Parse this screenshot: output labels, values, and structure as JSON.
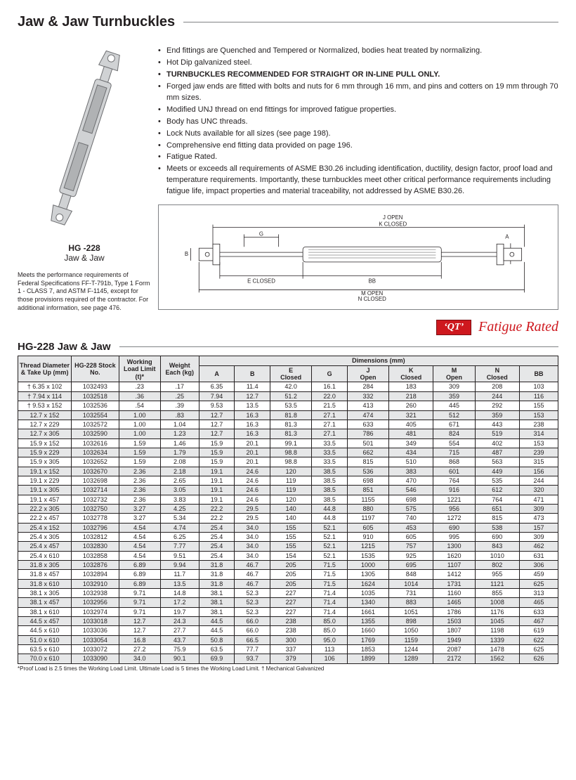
{
  "title": "Jaw & Jaw Turnbuckles",
  "product_image_label": {
    "code": "HG -228",
    "name": "Jaw & Jaw"
  },
  "spec_note": "Meets the performance requirements of Federal Specifications FF-T-791b, Type 1 Form 1 - CLASS 7, and ASTM F-1145, except for those provisions required of the contractor.  For additional information, see page 476.",
  "features": [
    {
      "text": "End fittings are Quenched and Tempered or Normalized, bodies heat treated by normalizing.",
      "bold": false
    },
    {
      "text": "Hot Dip galvanized steel.",
      "bold": false
    },
    {
      "text": "TURNBUCKLES RECOMMENDED FOR STRAIGHT OR IN-LINE PULL ONLY.",
      "bold": true
    },
    {
      "text": "Forged jaw ends are fitted with bolts and nuts for 6 mm through 16 mm, and pins and cotters on 19 mm through 70 mm sizes.",
      "bold": false
    },
    {
      "text": "Modified UNJ thread on end fittings for improved fatigue properties.",
      "bold": false
    },
    {
      "text": "Body has UNC threads.",
      "bold": false
    },
    {
      "text": "Lock Nuts available for all sizes (see page 198).",
      "bold": false
    },
    {
      "text": "Comprehensive end fitting data provided on page 196.",
      "bold": false
    },
    {
      "text": "Fatigue Rated.",
      "bold": false
    },
    {
      "text": "Meets or exceeds all requirements of ASME B30.26 including identification, ductility, design factor, proof load and temperature requirements.  Importantly, these turnbuckles meet other critical performance requirements including fatigue life, impact properties and material traceability, not addressed by ASME B30.26.",
      "bold": false
    }
  ],
  "diagram_labels": {
    "j_open": "J  OPEN",
    "k_closed": "K  CLOSED",
    "g": "G",
    "a": "A",
    "b": "B",
    "e_closed": "E  CLOSED",
    "bb": "BB",
    "m_open": "M  OPEN",
    "n_closed": "N  CLOSED"
  },
  "badges": {
    "qt": "‘QT’",
    "fatigue": "Fatigue Rated"
  },
  "table_title": "HG-228 Jaw & Jaw",
  "table": {
    "header": {
      "thread": "Thread Diameter & Take Up (mm)",
      "stock": "HG-228 Stock No.",
      "wll": "Working Load Limit (t)*",
      "weight": "Weight Each (kg)",
      "dims": "Dimensions (mm)",
      "cols": [
        "A",
        "B",
        "E Closed",
        "G",
        "J Open",
        "K Closed",
        "M Open",
        "N Closed",
        "BB"
      ]
    },
    "rows": [
      [
        "† 6.35 x 102",
        "1032493",
        ".23",
        ".17",
        "6.35",
        "11.4",
        "42.0",
        "16.1",
        "284",
        "183",
        "309",
        "208",
        "103"
      ],
      [
        "† 7.94 x 114",
        "1032518",
        ".36",
        ".25",
        "7.94",
        "12.7",
        "51.2",
        "22.0",
        "332",
        "218",
        "359",
        "244",
        "116"
      ],
      [
        "† 9.53 x 152",
        "1032536",
        ".54",
        ".39",
        "9.53",
        "13.5",
        "53.5",
        "21.5",
        "413",
        "260",
        "445",
        "292",
        "155"
      ],
      [
        "12.7 x 152",
        "1032554",
        "1.00",
        ".83",
        "12.7",
        "16.3",
        "81.8",
        "27.1",
        "474",
        "321",
        "512",
        "359",
        "153"
      ],
      [
        "12.7 x 229",
        "1032572",
        "1.00",
        "1.04",
        "12.7",
        "16.3",
        "81.3",
        "27.1",
        "633",
        "405",
        "671",
        "443",
        "238"
      ],
      [
        "12.7 x 305",
        "1032590",
        "1.00",
        "1.23",
        "12.7",
        "16.3",
        "81.3",
        "27.1",
        "786",
        "481",
        "824",
        "519",
        "314"
      ],
      [
        "15.9 x 152",
        "1032616",
        "1.59",
        "1.46",
        "15.9",
        "20.1",
        "99.1",
        "33.5",
        "501",
        "349",
        "554",
        "402",
        "153"
      ],
      [
        "15.9 x 229",
        "1032634",
        "1.59",
        "1.79",
        "15.9",
        "20.1",
        "98.8",
        "33.5",
        "662",
        "434",
        "715",
        "487",
        "239"
      ],
      [
        "15.9 x 305",
        "1032652",
        "1.59",
        "2.08",
        "15.9",
        "20.1",
        "98.8",
        "33.5",
        "815",
        "510",
        "868",
        "563",
        "315"
      ],
      [
        "19.1 x 152",
        "1032670",
        "2.36",
        "2.18",
        "19.1",
        "24.6",
        "120",
        "38.5",
        "536",
        "383",
        "601",
        "449",
        "156"
      ],
      [
        "19.1 x 229",
        "1032698",
        "2.36",
        "2.65",
        "19.1",
        "24.6",
        "119",
        "38.5",
        "698",
        "470",
        "764",
        "535",
        "244"
      ],
      [
        "19.1 x 305",
        "1032714",
        "2.36",
        "3.05",
        "19.1",
        "24.6",
        "119",
        "38.5",
        "851",
        "546",
        "916",
        "612",
        "320"
      ],
      [
        "19.1 x 457",
        "1032732",
        "2.36",
        "3.83",
        "19.1",
        "24.6",
        "120",
        "38.5",
        "1155",
        "698",
        "1221",
        "764",
        "471"
      ],
      [
        "22.2 x 305",
        "1032750",
        "3.27",
        "4.25",
        "22.2",
        "29.5",
        "140",
        "44.8",
        "880",
        "575",
        "956",
        "651",
        "309"
      ],
      [
        "22.2 x 457",
        "1032778",
        "3.27",
        "5.34",
        "22.2",
        "29.5",
        "140",
        "44.8",
        "1197",
        "740",
        "1272",
        "815",
        "473"
      ],
      [
        "25.4 x 152",
        "1032796",
        "4.54",
        "4.74",
        "25.4",
        "34.0",
        "155",
        "52.1",
        "605",
        "453",
        "690",
        "538",
        "157"
      ],
      [
        "25.4 x 305",
        "1032812",
        "4.54",
        "6.25",
        "25.4",
        "34.0",
        "155",
        "52.1",
        "910",
        "605",
        "995",
        "690",
        "309"
      ],
      [
        "25.4 x 457",
        "1032830",
        "4.54",
        "7.77",
        "25.4",
        "34.0",
        "155",
        "52.1",
        "1215",
        "757",
        "1300",
        "843",
        "462"
      ],
      [
        "25.4 x 610",
        "1032858",
        "4.54",
        "9.51",
        "25.4",
        "34.0",
        "154",
        "52.1",
        "1535",
        "925",
        "1620",
        "1010",
        "631"
      ],
      [
        "31.8 x 305",
        "1032876",
        "6.89",
        "9.94",
        "31.8",
        "46.7",
        "205",
        "71.5",
        "1000",
        "695",
        "1107",
        "802",
        "306"
      ],
      [
        "31.8 x 457",
        "1032894",
        "6.89",
        "11.7",
        "31.8",
        "46.7",
        "205",
        "71.5",
        "1305",
        "848",
        "1412",
        "955",
        "459"
      ],
      [
        "31.8 x 610",
        "1032910",
        "6.89",
        "13.5",
        "31.8",
        "46.7",
        "205",
        "71.5",
        "1624",
        "1014",
        "1731",
        "1121",
        "625"
      ],
      [
        "38.1 x 305",
        "1032938",
        "9.71",
        "14.8",
        "38.1",
        "52.3",
        "227",
        "71.4",
        "1035",
        "731",
        "1160",
        "855",
        "313"
      ],
      [
        "38.1 x 457",
        "1032956",
        "9.71",
        "17.2",
        "38.1",
        "52.3",
        "227",
        "71.4",
        "1340",
        "883",
        "1465",
        "1008",
        "465"
      ],
      [
        "38.1 x 610",
        "1032974",
        "9.71",
        "19.7",
        "38.1",
        "52.3",
        "227",
        "71.4",
        "1661",
        "1051",
        "1786",
        "1176",
        "633"
      ],
      [
        "44.5 x 457",
        "1033018",
        "12.7",
        "24.3",
        "44.5",
        "66.0",
        "238",
        "85.0",
        "1355",
        "898",
        "1503",
        "1045",
        "467"
      ],
      [
        "44.5 x 610",
        "1033036",
        "12.7",
        "27.7",
        "44.5",
        "66.0",
        "238",
        "85.0",
        "1660",
        "1050",
        "1807",
        "1198",
        "619"
      ],
      [
        "51.0 x 610",
        "1033054",
        "16.8",
        "43.7",
        "50.8",
        "66.5",
        "300",
        "95.0",
        "1769",
        "1159",
        "1949",
        "1339",
        "622"
      ],
      [
        "63.5 x 610",
        "1033072",
        "27.2",
        "75.9",
        "63.5",
        "77.7",
        "337",
        "113",
        "1853",
        "1244",
        "2087",
        "1478",
        "625"
      ],
      [
        "70.0 x 610",
        "1033090",
        "34.0",
        "90.1",
        "69.9",
        "93.7",
        "379",
        "106",
        "1899",
        "1289",
        "2172",
        "1562",
        "626"
      ]
    ]
  },
  "footnote": "*Proof Load is 2.5 times the Working Load Limit. Ultimate Load is 5 times the Working Load Limit. † Mechanical Galvanized",
  "colors": {
    "header_bg": "#e6e7e8",
    "rule": "#808285",
    "red": "#ce181e",
    "text": "#231f20"
  }
}
